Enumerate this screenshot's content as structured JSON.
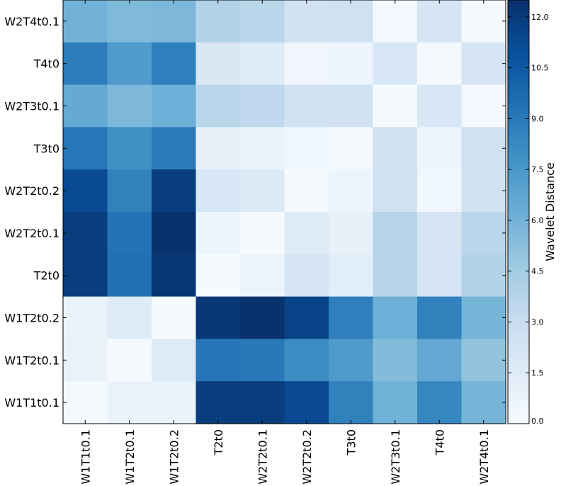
{
  "chart_data": {
    "type": "heatmap",
    "title": "",
    "xlabel": "",
    "ylabel": "",
    "x_labels": [
      "W1T1t0.1",
      "W1T2t0.1",
      "W1T2t0.2",
      "T2t0",
      "W2T2t0.1",
      "W2T2t0.2",
      "T3t0",
      "W2T3t0.1",
      "T4t0",
      "W2T4t0.1"
    ],
    "y_labels_top_to_bottom": [
      "W2T4t0.1",
      "T4t0",
      "W2T3t0.1",
      "T3t0",
      "W2T2t0.2",
      "W2T2t0.1",
      "T2t0",
      "W1T2t0.2",
      "W1T2t0.1",
      "W1T1t0.1"
    ],
    "values_top_to_bottom": [
      [
        6.0,
        5.6,
        5.7,
        3.9,
        3.6,
        2.4,
        2.5,
        0.3,
        2.1,
        0.2
      ],
      [
        8.8,
        7.3,
        8.7,
        1.9,
        1.5,
        0.4,
        0.6,
        2.0,
        0.2,
        2.1
      ],
      [
        6.5,
        5.7,
        6.2,
        3.6,
        3.4,
        2.4,
        2.4,
        0.1,
        2.0,
        0.3
      ],
      [
        9.1,
        7.9,
        8.9,
        1.1,
        0.8,
        0.5,
        0.2,
        2.4,
        0.6,
        2.5
      ],
      [
        11.2,
        8.6,
        11.9,
        2.0,
        1.7,
        0.2,
        0.6,
        2.5,
        0.5,
        2.4
      ],
      [
        11.9,
        9.3,
        12.4,
        0.6,
        0.1,
        1.6,
        1.0,
        3.8,
        2.1,
        3.6
      ],
      [
        11.9,
        9.4,
        12.2,
        0.1,
        0.6,
        2.1,
        1.4,
        3.7,
        2.2,
        3.9
      ],
      [
        0.8,
        1.5,
        0.1,
        12.1,
        12.4,
        11.6,
        8.7,
        6.2,
        8.6,
        5.9
      ],
      [
        0.9,
        0.1,
        1.6,
        9.2,
        9.0,
        8.1,
        7.3,
        5.5,
        6.6,
        5.1
      ],
      [
        0.2,
        0.8,
        0.8,
        11.9,
        11.9,
        11.3,
        8.6,
        6.1,
        8.4,
        5.9
      ]
    ],
    "colorbar": {
      "label": "Wavelet Distance",
      "min": 0.0,
      "max": 12.5,
      "ticks": [
        "0.0",
        "1.5",
        "3.0",
        "4.5",
        "6.0",
        "7.5",
        "9.0",
        "10.5",
        "12.0"
      ],
      "colormap": "Blues"
    }
  }
}
